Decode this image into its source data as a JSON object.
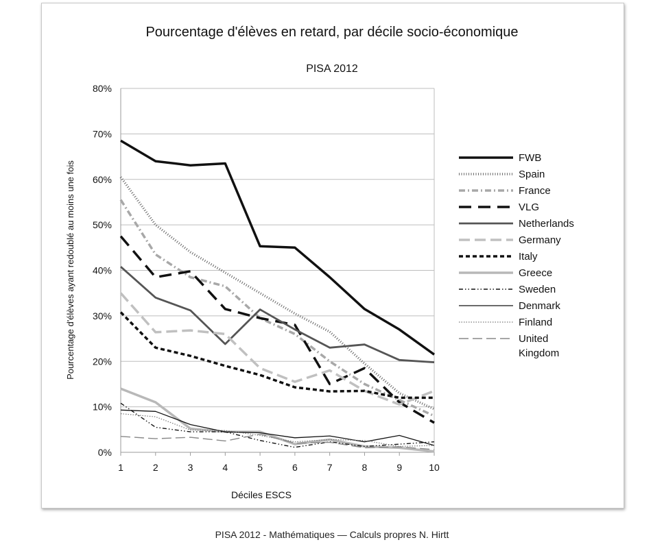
{
  "caption": "PISA 2012 - Mathématiques — Calculs propres N. Hirtt",
  "chart_data": {
    "type": "line",
    "title": "Pourcentage d'élèves en retard, par décile socio-économique",
    "subtitle": "PISA 2012",
    "xlabel": "Déciles ESCS",
    "ylabel": "Pourcentage d'élèves ayant redoublé au moins une fois",
    "x": [
      1,
      2,
      3,
      4,
      5,
      6,
      7,
      8,
      9,
      10
    ],
    "ylim": [
      0,
      80
    ],
    "yticks": [
      "0%",
      "10%",
      "20%",
      "30%",
      "40%",
      "50%",
      "60%",
      "70%",
      "80%"
    ],
    "grid": "horizontal",
    "legend_position": "right",
    "series": [
      {
        "name": "FWB",
        "values": [
          68.5,
          64.0,
          63.1,
          63.5,
          45.3,
          45.0,
          38.5,
          31.5,
          27.0,
          21.5
        ],
        "color": "#111111",
        "dash": "",
        "width": 3.5
      },
      {
        "name": "Spain",
        "values": [
          60.5,
          50.0,
          44.0,
          39.5,
          35.0,
          30.5,
          26.5,
          19.5,
          13.0,
          9.5
        ],
        "color": "#666666",
        "dash": "1,2.5",
        "width": 3.5
      },
      {
        "name": "France",
        "values": [
          55.5,
          43.5,
          38.5,
          36.5,
          29.5,
          26.0,
          20.0,
          15.0,
          11.5,
          8.0
        ],
        "color": "#a8a8a8",
        "dash": "9,4,2,4",
        "width": 3.5
      },
      {
        "name": "VLG",
        "values": [
          47.5,
          38.5,
          39.8,
          31.5,
          29.5,
          28.0,
          15.0,
          18.5,
          11.0,
          6.5
        ],
        "color": "#111111",
        "dash": "18,10",
        "width": 3.5
      },
      {
        "name": "Netherlands",
        "values": [
          40.8,
          34.0,
          31.2,
          23.8,
          31.4,
          27.0,
          23.0,
          23.7,
          20.3,
          19.8
        ],
        "color": "#555555",
        "dash": "",
        "width": 2.8
      },
      {
        "name": "Germany",
        "values": [
          35.0,
          26.4,
          26.8,
          26.0,
          18.5,
          15.5,
          18.0,
          13.5,
          10.5,
          13.5
        ],
        "color": "#c0c0c0",
        "dash": "16,7",
        "width": 3.5
      },
      {
        "name": "Italy",
        "values": [
          30.8,
          23.0,
          21.2,
          19.0,
          17.0,
          14.3,
          13.4,
          13.5,
          12.0,
          12.0
        ],
        "color": "#111111",
        "dash": "6,4",
        "width": 3.5
      },
      {
        "name": "Greece",
        "values": [
          14.0,
          11.0,
          5.2,
          4.5,
          4.5,
          1.8,
          2.8,
          1.3,
          1.0,
          0.2
        ],
        "color": "#b8b8b8",
        "dash": "",
        "width": 3.5
      },
      {
        "name": "Sweden",
        "values": [
          10.8,
          5.5,
          4.5,
          4.5,
          2.6,
          1.1,
          2.3,
          1.3,
          1.8,
          2.3
        ],
        "color": "#111111",
        "dash": "6,3,1.5,3,1.5,3",
        "width": 1.4
      },
      {
        "name": "Denmark",
        "values": [
          9.3,
          9.0,
          6.1,
          4.5,
          4.3,
          3.2,
          3.6,
          2.3,
          3.7,
          1.5
        ],
        "color": "#111111",
        "dash": "",
        "width": 1.3
      },
      {
        "name": "Finland",
        "values": [
          8.5,
          7.8,
          4.9,
          4.8,
          3.7,
          2.3,
          2.8,
          2.6,
          1.3,
          1.5
        ],
        "color": "#777777",
        "dash": "1.5,2",
        "width": 1.2
      },
      {
        "name": "United Kingdom",
        "values": [
          3.5,
          3.0,
          3.3,
          2.5,
          4.0,
          2.0,
          2.2,
          1.0,
          1.2,
          0.6
        ],
        "color": "#888888",
        "dash": "14,6",
        "width": 1.4
      }
    ]
  }
}
